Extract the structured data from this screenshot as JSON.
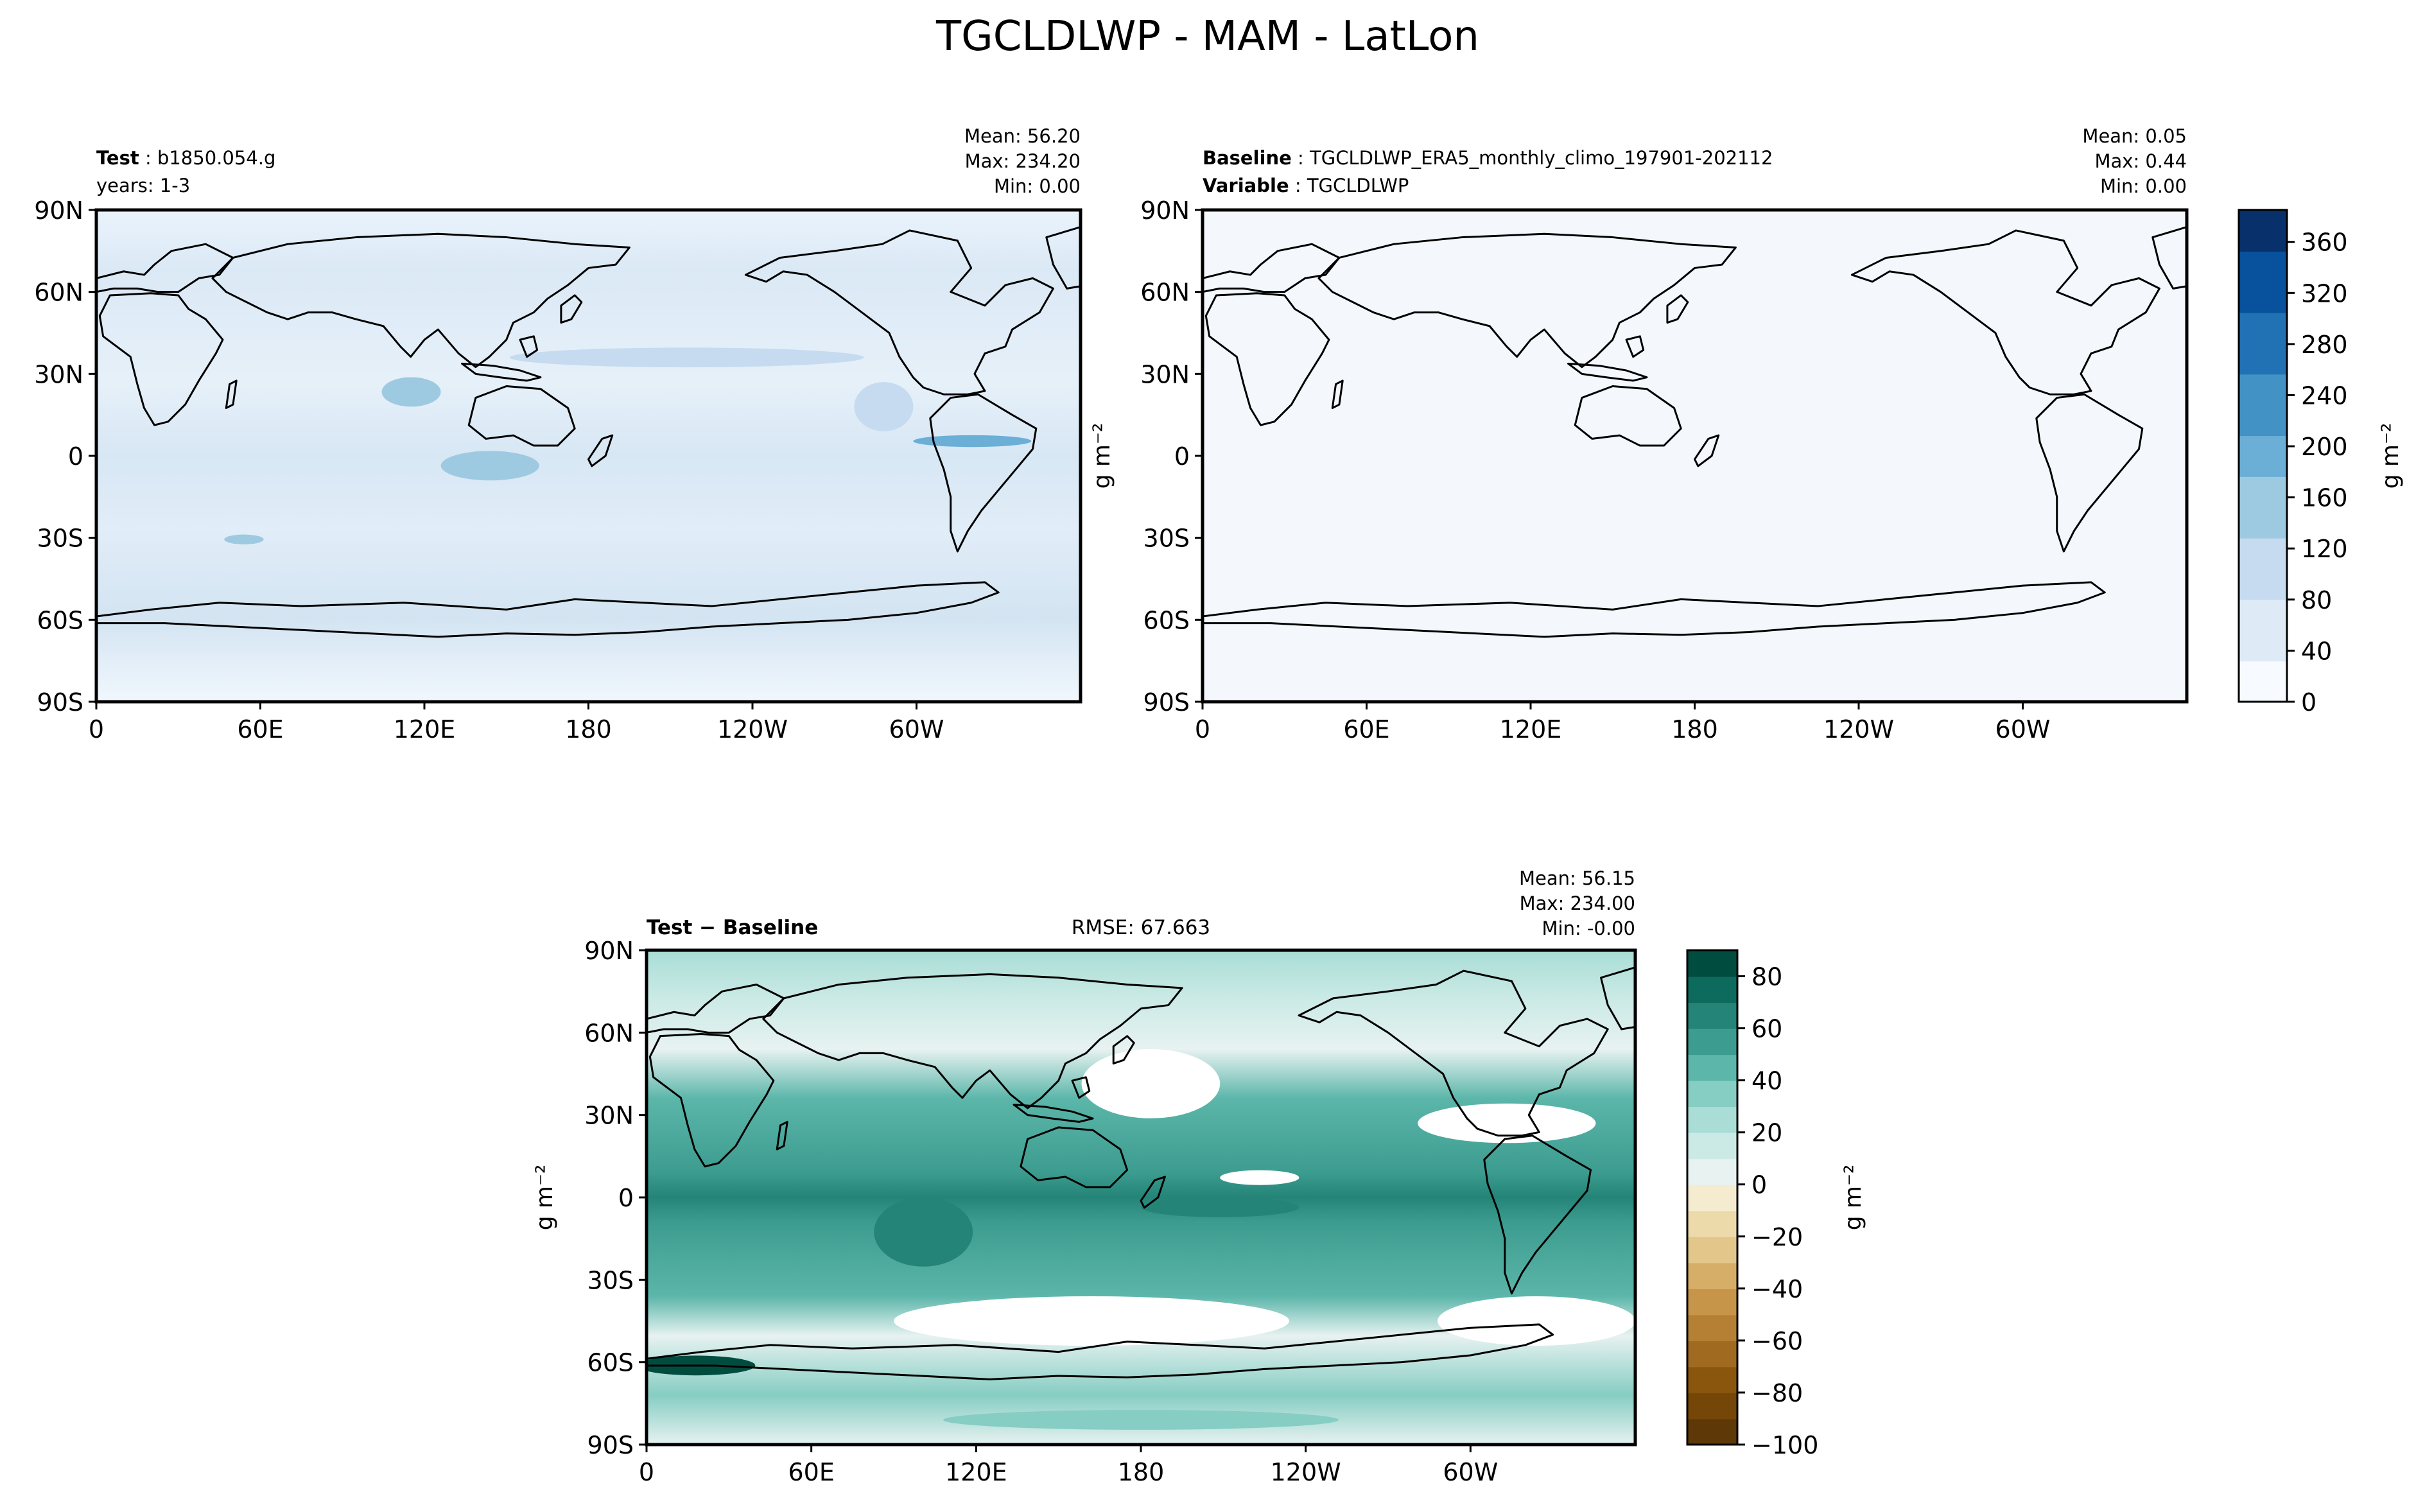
{
  "figure": {
    "title": "TGCLDLWP - MAM - LatLon"
  },
  "axes": {
    "lat_ticks": [
      "90N",
      "60N",
      "30N",
      "0",
      "30S",
      "60S",
      "90S"
    ],
    "lon_ticks": [
      "0",
      "60E",
      "120E",
      "180",
      "120W",
      "60W"
    ]
  },
  "panels": {
    "test": {
      "label_key": "Test",
      "label_value": "b1850.054.g",
      "subtitle": "years: 1-3",
      "stats": {
        "mean": "Mean: 56.20",
        "max": "Max: 234.20",
        "min": "Min:  0.00"
      }
    },
    "baseline": {
      "label_key": "Baseline",
      "label_value": "TGCLDLWP_ERA5_monthly_climo_197901-202112",
      "variable_key": "Variable",
      "variable_value": "TGCLDLWP",
      "stats": {
        "mean": "Mean:  0.05",
        "max": "Max:  0.44",
        "min": "Min:  0.00"
      },
      "ylabel": "g m⁻²"
    },
    "diff": {
      "label": "Test − Baseline",
      "rmse": "RMSE: 67.663",
      "stats": {
        "mean": "Mean: 56.15",
        "max": "Max: 234.00",
        "min": "Min: -0.00"
      },
      "ylabel": "g m⁻²"
    }
  },
  "colorbars": {
    "top": {
      "label": "g m⁻²",
      "ticks": [
        "0",
        "40",
        "80",
        "120",
        "160",
        "200",
        "240",
        "280",
        "320",
        "360"
      ],
      "tick_values": [
        0,
        40,
        80,
        120,
        160,
        200,
        240,
        280,
        320,
        360
      ],
      "vmin": 0,
      "vmax": 385,
      "colors": [
        "#f7fbff",
        "#deebf7",
        "#c6dbef",
        "#9ecae1",
        "#6baed6",
        "#4292c6",
        "#2171b5",
        "#08519c",
        "#08306b"
      ]
    },
    "diff": {
      "label": "g m⁻²",
      "ticks": [
        "80",
        "60",
        "40",
        "20",
        "0",
        "−20",
        "−40",
        "−60",
        "−80",
        "−100"
      ],
      "tick_values": [
        80,
        60,
        40,
        20,
        0,
        -20,
        -40,
        -60,
        -80,
        -100
      ],
      "vmin": -100,
      "vmax": 90,
      "levels": [
        -100,
        -90,
        -80,
        -70,
        -60,
        -50,
        -40,
        -30,
        -20,
        -10,
        0,
        10,
        20,
        30,
        40,
        50,
        60,
        70,
        80,
        90
      ],
      "colors": [
        "#5e3806",
        "#744708",
        "#8a560d",
        "#a06a20",
        "#b58033",
        "#c79549",
        "#d7ae68",
        "#e3c78a",
        "#ecdaab",
        "#f5eccf",
        "#e7f2f1",
        "#cbeae6",
        "#a9ddd6",
        "#86cdc3",
        "#5cb6aa",
        "#3c9c8f",
        "#238477",
        "#0d6b5d",
        "#004d3f"
      ]
    }
  }
}
